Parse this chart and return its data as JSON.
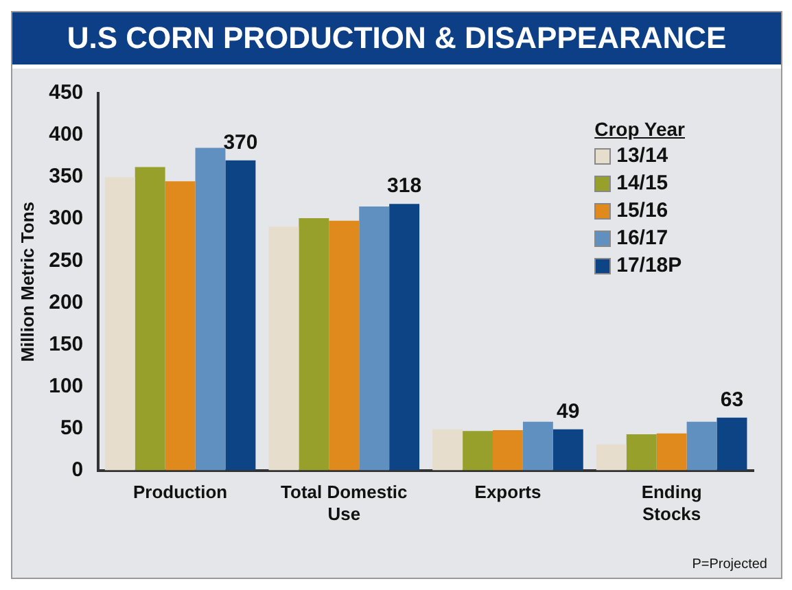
{
  "chart_data": {
    "type": "bar",
    "title": "U.S CORN PRODUCTION & DISAPPEARANCE",
    "ylabel": "Million Metric Tons",
    "legend_title": "Crop Year",
    "legend": "top right",
    "categories": [
      "Production",
      "Total Domestic Use",
      "Exports",
      "Ending Stocks"
    ],
    "series": [
      {
        "name": "13/14",
        "color": "#e6ddcc",
        "values": [
          350,
          291,
          49,
          31
        ]
      },
      {
        "name": "14/15",
        "color": "#96a02a",
        "values": [
          362,
          301,
          47,
          43
        ]
      },
      {
        "name": "15/16",
        "color": "#e08a1e",
        "values": [
          345,
          298,
          48,
          44
        ]
      },
      {
        "name": "16/17",
        "color": "#6090c0",
        "values": [
          385,
          315,
          58,
          58
        ]
      },
      {
        "name": "17/18P",
        "color": "#0d4486",
        "values": [
          370,
          318,
          49,
          63
        ],
        "value_labels": [
          "370",
          "318",
          "49",
          "63"
        ]
      }
    ],
    "ylim": [
      0,
      450
    ],
    "yticks": [
      0,
      50,
      100,
      150,
      200,
      250,
      300,
      350,
      400,
      450
    ],
    "grid": false,
    "annotations": [
      "P=Projected"
    ]
  }
}
